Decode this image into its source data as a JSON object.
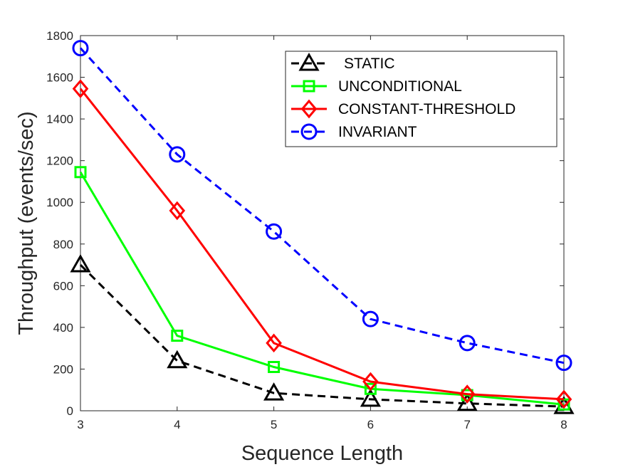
{
  "chart_data": {
    "type": "line",
    "xlabel": "Sequence Length",
    "ylabel": "Throughput (events/sec)",
    "x": [
      3,
      4,
      5,
      6,
      7,
      8
    ],
    "xlim": [
      3,
      8
    ],
    "ylim": [
      0,
      1800
    ],
    "xticks": [
      3,
      4,
      5,
      6,
      7,
      8
    ],
    "yticks": [
      0,
      200,
      400,
      600,
      800,
      1000,
      1200,
      1400,
      1600,
      1800
    ],
    "legend_position": "top-right",
    "grid": false,
    "series": [
      {
        "name": "STATIC",
        "values": [
          700,
          240,
          85,
          55,
          35,
          20
        ],
        "color": "#000000",
        "dash": "dashed",
        "marker": "triangle"
      },
      {
        "name": "UNCONDITIONAL",
        "values": [
          1145,
          360,
          210,
          105,
          75,
          30
        ],
        "color": "#00ff00",
        "dash": "solid",
        "marker": "square"
      },
      {
        "name": "CONSTANT-THRESHOLD",
        "values": [
          1545,
          960,
          325,
          140,
          80,
          55
        ],
        "color": "#ff0000",
        "dash": "solid",
        "marker": "diamond"
      },
      {
        "name": "INVARIANT",
        "values": [
          1740,
          1230,
          860,
          440,
          325,
          230
        ],
        "color": "#0000ff",
        "dash": "dashed",
        "marker": "circle"
      }
    ]
  }
}
